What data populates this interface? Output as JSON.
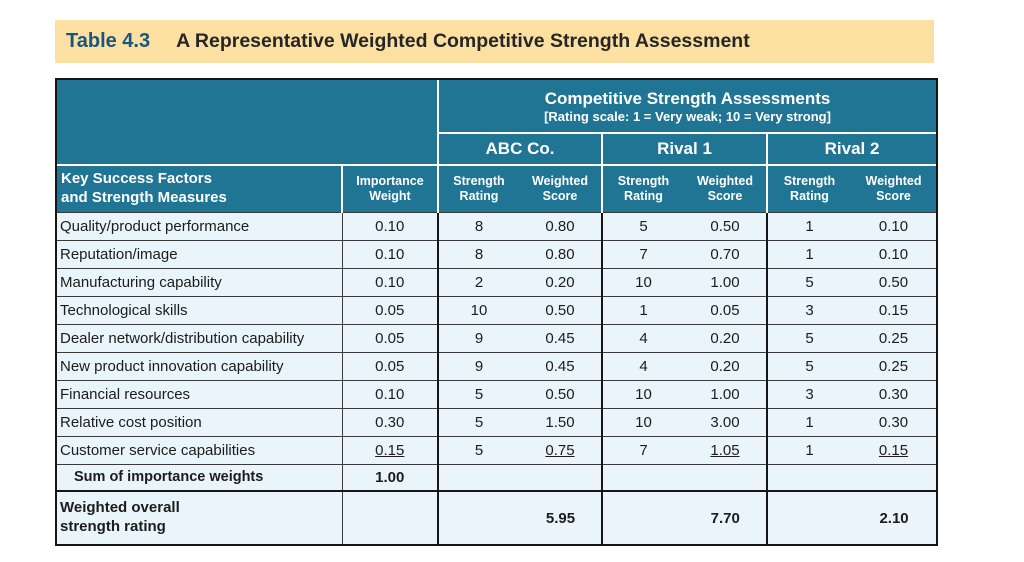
{
  "banner": {
    "label": "Table 4.3",
    "title": "A Representative Weighted Competitive Strength Assessment"
  },
  "header": {
    "assessments_title": "Competitive Strength Assessments",
    "rating_scale": "[Rating scale: 1 = Very weak; 10 = Very strong]",
    "companies": [
      "ABC Co.",
      "Rival 1",
      "Rival 2"
    ],
    "key_success_factors": "Key Success Factors\nand Strength Measures",
    "importance_weight": "Importance\nWeight",
    "strength_rating": "Strength\nRating",
    "weighted_score": "Weighted\nScore"
  },
  "rows": [
    {
      "factor": "Quality/product performance",
      "weight": "0.10",
      "abc": [
        "8",
        "0.80"
      ],
      "r1": [
        "5",
        "0.50"
      ],
      "r2": [
        "1",
        "0.10"
      ],
      "ul": false
    },
    {
      "factor": "Reputation/image",
      "weight": "0.10",
      "abc": [
        "8",
        "0.80"
      ],
      "r1": [
        "7",
        "0.70"
      ],
      "r2": [
        "1",
        "0.10"
      ],
      "ul": false
    },
    {
      "factor": "Manufacturing capability",
      "weight": "0.10",
      "abc": [
        "2",
        "0.20"
      ],
      "r1": [
        "10",
        "1.00"
      ],
      "r2": [
        "5",
        "0.50"
      ],
      "ul": false
    },
    {
      "factor": "Technological skills",
      "weight": "0.05",
      "abc": [
        "10",
        "0.50"
      ],
      "r1": [
        "1",
        "0.05"
      ],
      "r2": [
        "3",
        "0.15"
      ],
      "ul": false
    },
    {
      "factor": "Dealer network/distribution capability",
      "weight": "0.05",
      "abc": [
        "9",
        "0.45"
      ],
      "r1": [
        "4",
        "0.20"
      ],
      "r2": [
        "5",
        "0.25"
      ],
      "ul": false
    },
    {
      "factor": "New product innovation capability",
      "weight": "0.05",
      "abc": [
        "9",
        "0.45"
      ],
      "r1": [
        "4",
        "0.20"
      ],
      "r2": [
        "5",
        "0.25"
      ],
      "ul": false
    },
    {
      "factor": "Financial resources",
      "weight": "0.10",
      "abc": [
        "5",
        "0.50"
      ],
      "r1": [
        "10",
        "1.00"
      ],
      "r2": [
        "3",
        "0.30"
      ],
      "ul": false
    },
    {
      "factor": "Relative cost position",
      "weight": "0.30",
      "abc": [
        "5",
        "1.50"
      ],
      "r1": [
        "10",
        "3.00"
      ],
      "r2": [
        "1",
        "0.30"
      ],
      "ul": false
    },
    {
      "factor": "Customer service capabilities",
      "weight": "0.15",
      "abc": [
        "5",
        "0.75"
      ],
      "r1": [
        "7",
        "1.05"
      ],
      "r2": [
        "1",
        "0.15"
      ],
      "ul": true
    }
  ],
  "sum_row": {
    "label": "Sum of importance weights",
    "value": "1.00"
  },
  "overall_row": {
    "label": "Weighted overall\nstrength rating",
    "values": [
      "5.95",
      "7.70",
      "2.10"
    ]
  },
  "colors": {
    "banner_bg": "#FBE0A2",
    "banner_label": "#19567D",
    "header_teal": "#1F7593",
    "header_text": "#FFFFFF",
    "row_bg": "#EAF4FB",
    "body_text": "#1C1C1C"
  }
}
